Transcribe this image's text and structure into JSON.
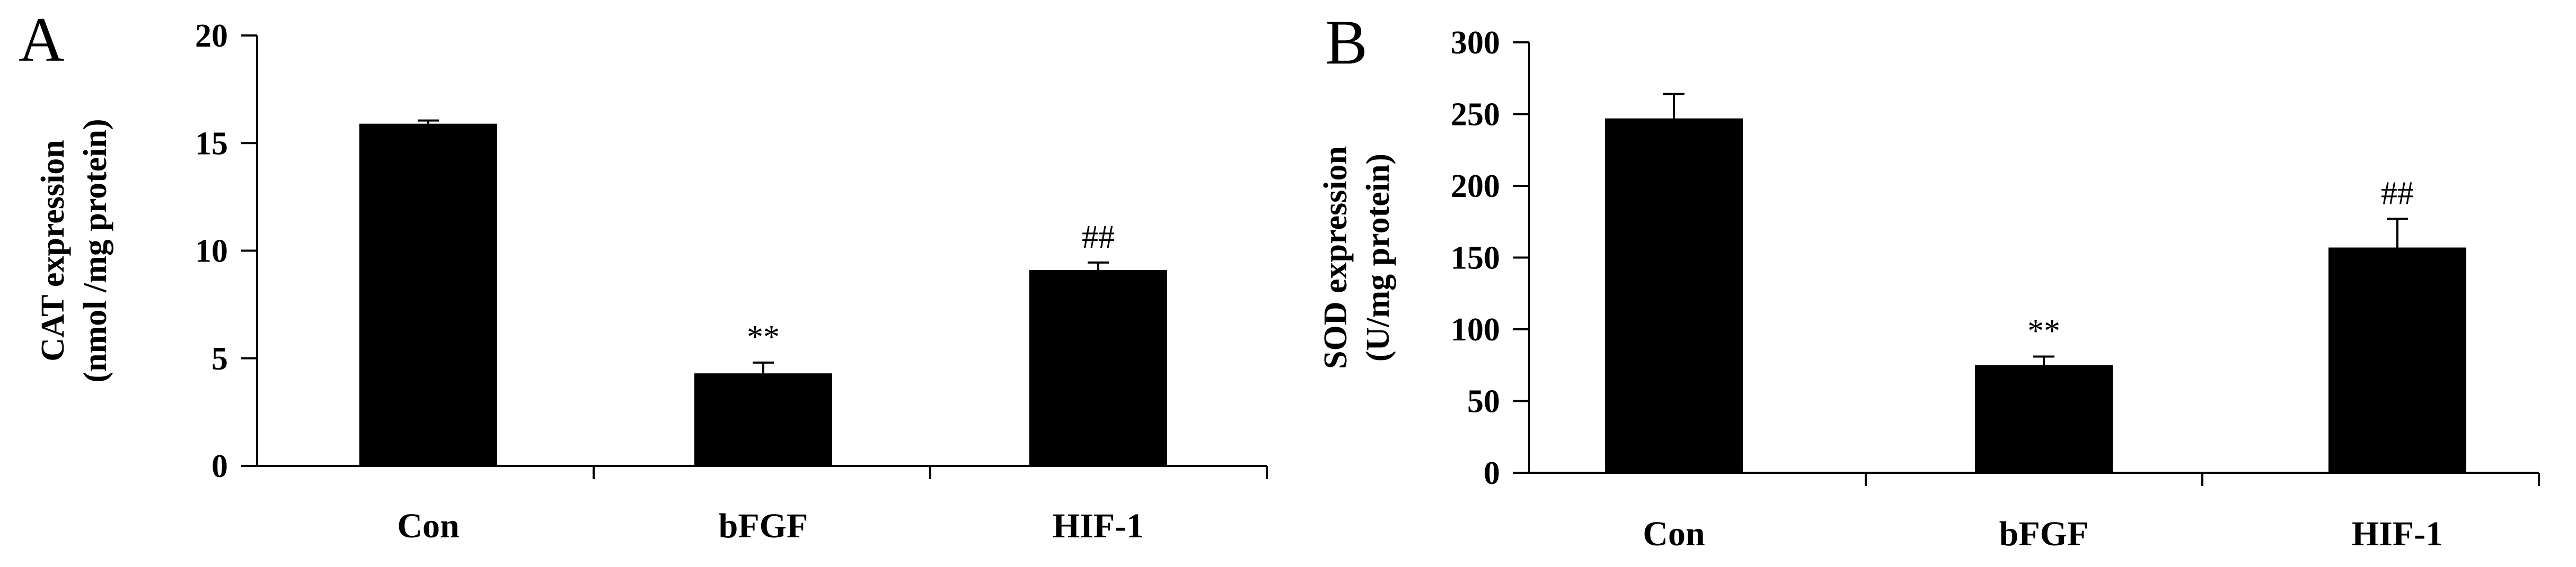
{
  "chart_data": [
    {
      "type": "bar",
      "panel_label": "A",
      "ylabel_lines": [
        "CAT expression",
        "(nmol /mg protein)"
      ],
      "xlabel": "",
      "categories": [
        "Con",
        "bFGF",
        "HIF-1"
      ],
      "values": [
        15.9,
        4.3,
        9.1
      ],
      "errors": [
        0.15,
        0.5,
        0.35
      ],
      "annotations": [
        "",
        "**",
        "##"
      ],
      "ylim": [
        0,
        20
      ],
      "yticks": [
        0,
        5,
        10,
        15,
        20
      ],
      "bar_color": "#000000",
      "grid": false,
      "legend": "none"
    },
    {
      "type": "bar",
      "panel_label": "B",
      "ylabel_lines": [
        "SOD expression",
        "(U/mg protein)"
      ],
      "xlabel": "",
      "categories": [
        "Con",
        "bFGF",
        "HIF-1"
      ],
      "values": [
        247,
        75,
        157
      ],
      "errors": [
        17,
        6,
        20
      ],
      "annotations": [
        "",
        "**",
        "##"
      ],
      "ylim": [
        0,
        300
      ],
      "yticks": [
        0,
        50,
        100,
        150,
        200,
        250,
        300
      ],
      "bar_color": "#000000",
      "grid": false,
      "legend": "none"
    }
  ]
}
